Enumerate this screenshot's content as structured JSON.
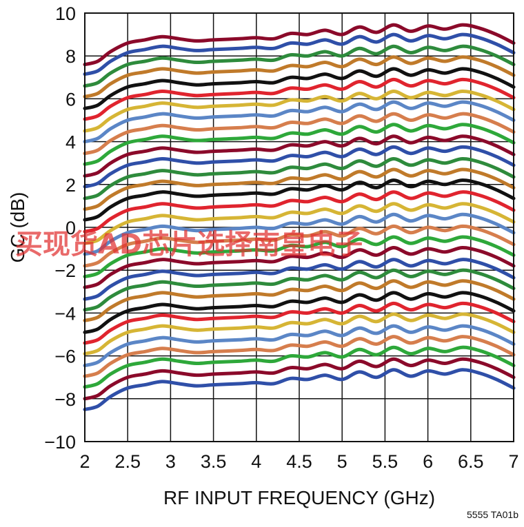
{
  "chart_data": {
    "type": "line",
    "title": "",
    "xlabel": "RF INPUT FREQUENCY (GHz)",
    "ylabel": "GC (dB)",
    "xlim": [
      2,
      7
    ],
    "ylim": [
      -10,
      10
    ],
    "x_ticks": [
      "2",
      "2.5",
      "3",
      "3.5",
      "4",
      "4.5",
      "5",
      "5.5",
      "6",
      "6.5",
      "7"
    ],
    "y_ticks": [
      "10",
      "8",
      "6",
      "4",
      "2",
      "0",
      "−2",
      "−4",
      "−6",
      "−8",
      "−10"
    ],
    "grid": true,
    "legend": "none",
    "figure_id": "5555 TA01b",
    "watermark": "买现货AD芯片选择南皇电子",
    "curve_shape": {
      "x": [
        2.0,
        2.15,
        2.3,
        2.5,
        2.7,
        2.9,
        3.1,
        3.3,
        3.5,
        3.8,
        4.0,
        4.2,
        4.4,
        4.6,
        4.8,
        5.0,
        5.2,
        5.4,
        5.6,
        5.8,
        6.0,
        6.2,
        6.4,
        6.6,
        6.8,
        7.0
      ],
      "offset_db": [
        -1.35,
        -1.2,
        -0.75,
        -0.35,
        -0.2,
        -0.05,
        -0.15,
        -0.25,
        -0.2,
        -0.15,
        -0.1,
        -0.15,
        0.1,
        0.05,
        0.25,
        0.05,
        0.4,
        0.15,
        0.5,
        0.2,
        0.45,
        0.3,
        0.5,
        0.35,
        0.05,
        -0.35
      ]
    },
    "series_offset_db": [
      8.95,
      8.5,
      7.95,
      7.45,
      6.9,
      6.4,
      5.85,
      5.35,
      4.8,
      4.3,
      3.75,
      3.25,
      2.7,
      2.2,
      1.7,
      1.15,
      0.6,
      0.1,
      -0.45,
      -0.95,
      -1.45,
      -2.0,
      -2.5,
      -3.0,
      -3.55,
      -4.05,
      -4.55,
      -5.1,
      -5.6,
      -6.1,
      -6.65,
      -7.15
    ],
    "series_colors": [
      "#8b0a2a",
      "#2f4fa8",
      "#2e8b3c",
      "#c07a2a",
      "#111111",
      "#e0242e",
      "#d6b535",
      "#5b86c6",
      "#d67e4d",
      "#2ea83a",
      "#8b0a2a",
      "#2f4fa8",
      "#2e8b3c",
      "#c07a2a",
      "#111111",
      "#e0242e",
      "#d6b535",
      "#5b86c6",
      "#d67e4d",
      "#2ea83a",
      "#8b0a2a",
      "#2f4fa8",
      "#2e8b3c",
      "#c07a2a",
      "#111111",
      "#e0242e",
      "#d6b535",
      "#5b86c6",
      "#d67e4d",
      "#2ea83a",
      "#8b0a2a",
      "#2f4fa8"
    ]
  }
}
